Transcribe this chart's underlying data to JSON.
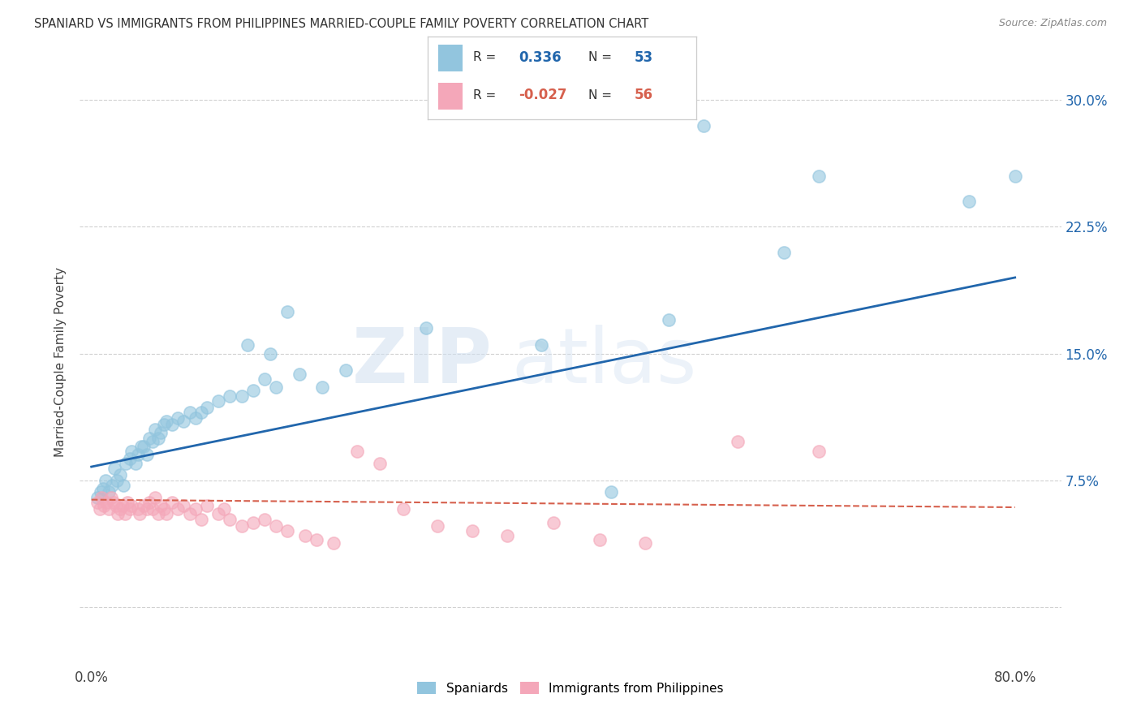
{
  "title": "SPANIARD VS IMMIGRANTS FROM PHILIPPINES MARRIED-COUPLE FAMILY POVERTY CORRELATION CHART",
  "source": "Source: ZipAtlas.com",
  "ylabel": "Married-Couple Family Poverty",
  "yticks": [
    0.0,
    0.075,
    0.15,
    0.225,
    0.3
  ],
  "ytick_labels": [
    "",
    "7.5%",
    "15.0%",
    "22.5%",
    "30.0%"
  ],
  "xticks": [
    0.0,
    0.1,
    0.2,
    0.3,
    0.4,
    0.5,
    0.6,
    0.7,
    0.8
  ],
  "xlim": [
    -0.01,
    0.84
  ],
  "ylim": [
    -0.035,
    0.325
  ],
  "blue_color": "#92c5de",
  "pink_color": "#f4a7b9",
  "blue_line_color": "#2166ac",
  "pink_line_color": "#d6604d",
  "R_blue": "0.336",
  "N_blue": "53",
  "R_pink": "-0.027",
  "N_pink": "56",
  "legend_labels": [
    "Spaniards",
    "Immigrants from Philippines"
  ],
  "watermark_zip": "ZIP",
  "watermark_atlas": "atlas",
  "blue_scatter_x": [
    0.005,
    0.008,
    0.01,
    0.012,
    0.015,
    0.018,
    0.02,
    0.022,
    0.025,
    0.028,
    0.03,
    0.033,
    0.035,
    0.038,
    0.04,
    0.043,
    0.045,
    0.048,
    0.05,
    0.053,
    0.055,
    0.058,
    0.06,
    0.063,
    0.065,
    0.07,
    0.075,
    0.08,
    0.085,
    0.09,
    0.095,
    0.1,
    0.11,
    0.12,
    0.13,
    0.14,
    0.15,
    0.16,
    0.17,
    0.18,
    0.2,
    0.22,
    0.135,
    0.155,
    0.29,
    0.39,
    0.5,
    0.53,
    0.63,
    0.76,
    0.8,
    0.45,
    0.6
  ],
  "blue_scatter_y": [
    0.065,
    0.068,
    0.07,
    0.075,
    0.068,
    0.072,
    0.082,
    0.075,
    0.078,
    0.072,
    0.085,
    0.088,
    0.092,
    0.085,
    0.09,
    0.095,
    0.095,
    0.09,
    0.1,
    0.098,
    0.105,
    0.1,
    0.103,
    0.108,
    0.11,
    0.108,
    0.112,
    0.11,
    0.115,
    0.112,
    0.115,
    0.118,
    0.122,
    0.125,
    0.125,
    0.128,
    0.135,
    0.13,
    0.175,
    0.138,
    0.13,
    0.14,
    0.155,
    0.15,
    0.165,
    0.155,
    0.17,
    0.285,
    0.255,
    0.24,
    0.255,
    0.068,
    0.21
  ],
  "pink_scatter_x": [
    0.005,
    0.007,
    0.009,
    0.011,
    0.013,
    0.015,
    0.017,
    0.019,
    0.021,
    0.023,
    0.025,
    0.027,
    0.029,
    0.031,
    0.033,
    0.035,
    0.04,
    0.042,
    0.045,
    0.048,
    0.05,
    0.053,
    0.055,
    0.058,
    0.06,
    0.063,
    0.065,
    0.07,
    0.075,
    0.08,
    0.085,
    0.09,
    0.095,
    0.1,
    0.11,
    0.115,
    0.12,
    0.13,
    0.14,
    0.15,
    0.16,
    0.17,
    0.185,
    0.195,
    0.21,
    0.23,
    0.25,
    0.27,
    0.3,
    0.33,
    0.36,
    0.4,
    0.44,
    0.48,
    0.56,
    0.63
  ],
  "pink_scatter_y": [
    0.062,
    0.058,
    0.065,
    0.06,
    0.062,
    0.058,
    0.065,
    0.062,
    0.06,
    0.055,
    0.058,
    0.06,
    0.055,
    0.062,
    0.058,
    0.06,
    0.058,
    0.055,
    0.06,
    0.058,
    0.062,
    0.058,
    0.065,
    0.055,
    0.06,
    0.058,
    0.055,
    0.062,
    0.058,
    0.06,
    0.055,
    0.058,
    0.052,
    0.06,
    0.055,
    0.058,
    0.052,
    0.048,
    0.05,
    0.052,
    0.048,
    0.045,
    0.042,
    0.04,
    0.038,
    0.092,
    0.085,
    0.058,
    0.048,
    0.045,
    0.042,
    0.05,
    0.04,
    0.038,
    0.098,
    0.092
  ],
  "blue_trendline_x": [
    0.0,
    0.8
  ],
  "blue_trendline_y": [
    0.083,
    0.195
  ],
  "pink_trendline_x": [
    0.0,
    0.8
  ],
  "pink_trendline_y": [
    0.0635,
    0.059
  ],
  "grid_color": "#cccccc",
  "background_color": "#ffffff"
}
